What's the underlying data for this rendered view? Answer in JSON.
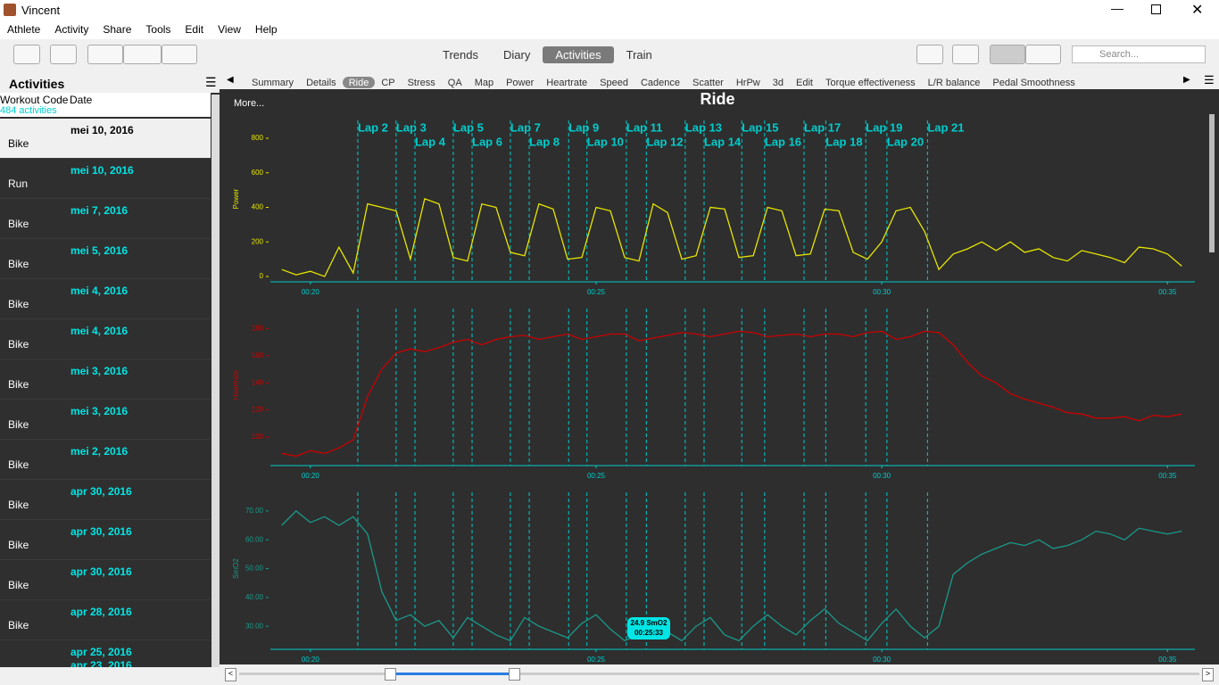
{
  "window": {
    "title": "Vincent"
  },
  "menu": [
    "Athlete",
    "Activity",
    "Share",
    "Tools",
    "Edit",
    "View",
    "Help"
  ],
  "views": [
    "Trends",
    "Diary",
    "Activities",
    "Train"
  ],
  "search": "Search...",
  "sidebar": {
    "title": "Activities",
    "columns": [
      "Workout Code",
      "Date"
    ],
    "count": "484 activities",
    "rows": [
      {
        "code": "Bike",
        "date": "mei 10, 2016"
      },
      {
        "code": "Run",
        "date": "mei 10, 2016"
      },
      {
        "code": "Bike",
        "date": "mei 7, 2016"
      },
      {
        "code": "Bike",
        "date": "mei 5, 2016"
      },
      {
        "code": "Bike",
        "date": "mei 4, 2016"
      },
      {
        "code": "Bike",
        "date": "mei 4, 2016"
      },
      {
        "code": "Bike",
        "date": "mei 3, 2016"
      },
      {
        "code": "Bike",
        "date": "mei 3, 2016"
      },
      {
        "code": "Bike",
        "date": "mei 2, 2016"
      },
      {
        "code": "Bike",
        "date": "apr 30, 2016"
      },
      {
        "code": "Bike",
        "date": "apr 30, 2016"
      },
      {
        "code": "Bike",
        "date": "apr 30, 2016"
      },
      {
        "code": "Bike",
        "date": "apr 28, 2016"
      },
      {
        "date": "apr 25, 2016"
      },
      {
        "date": "apr 23, 2016"
      }
    ]
  },
  "tabs": [
    "Summary",
    "Details",
    "Ride",
    "CP",
    "Stress",
    "QA",
    "Map",
    "Power",
    "Heartrate",
    "Speed",
    "Cadence",
    "Scatter",
    "HrPw",
    "3d",
    "Edit",
    "Torque effectiveness",
    "L/R balance",
    "Pedal Smoothness"
  ],
  "view_title": "Ride",
  "more": "More...",
  "chart_data": [
    {
      "type": "line",
      "y_label": "Power",
      "laps": {
        "x": [
          20.83,
          21.5,
          21.83,
          22.5,
          22.83,
          23.5,
          23.83,
          24.52,
          24.84,
          25.53,
          25.88,
          26.56,
          26.89,
          27.55,
          27.95,
          28.64,
          29.02,
          29.72,
          30.09,
          30.8
        ],
        "labels": [
          "Lap 2",
          "Lap 3",
          "Lap 4",
          "Lap 5",
          "Lap 6",
          "Lap 7",
          "Lap 8",
          "Lap 9",
          "Lap 10",
          "Lap 11",
          "Lap 12",
          "Lap 13",
          "Lap 14",
          "Lap 15",
          "Lap 16",
          "Lap 17",
          "Lap 18",
          "Lap 19",
          "Lap 20",
          "Lap 21"
        ]
      },
      "x": [
        19.5,
        19.75,
        20,
        20.25,
        20.5,
        20.75,
        21,
        21.25,
        21.5,
        21.75,
        22,
        22.25,
        22.5,
        22.75,
        23,
        23.25,
        23.5,
        23.75,
        24,
        24.25,
        24.5,
        24.75,
        25,
        25.25,
        25.5,
        25.75,
        26,
        26.25,
        26.5,
        26.75,
        27,
        27.25,
        27.5,
        27.75,
        28,
        28.25,
        28.5,
        28.75,
        29,
        29.25,
        29.5,
        29.75,
        30,
        30.25,
        30.5,
        30.75,
        31,
        31.25,
        31.5,
        31.75,
        32,
        32.25,
        32.5,
        32.75,
        33,
        33.25,
        33.5,
        33.75,
        34,
        34.25,
        34.5,
        34.75,
        35,
        35.25
      ],
      "series": [
        {
          "name": "Power",
          "color": "#e6e600",
          "values": [
            40,
            10,
            30,
            0,
            170,
            20,
            420,
            400,
            380,
            100,
            450,
            420,
            110,
            90,
            420,
            400,
            140,
            120,
            420,
            390,
            100,
            110,
            400,
            380,
            110,
            90,
            420,
            370,
            100,
            120,
            400,
            390,
            110,
            120,
            400,
            380,
            120,
            130,
            390,
            380,
            140,
            100,
            200,
            380,
            400,
            260,
            40,
            130,
            160,
            200,
            150,
            200,
            140,
            160,
            110,
            90,
            150,
            130,
            110,
            80,
            170,
            160,
            130,
            60
          ]
        }
      ],
      "xlim": [
        19.3,
        35.48
      ],
      "xticks": [
        {
          "value": 20,
          "label": "00:20"
        },
        {
          "value": 25,
          "label": "00:25"
        },
        {
          "value": 30,
          "label": "00:30"
        },
        {
          "value": 35,
          "label": "00:35"
        }
      ],
      "ylim": [
        -31,
        929
      ],
      "yticks": [
        0,
        200,
        400,
        600,
        800
      ]
    },
    {
      "type": "line",
      "y_label": "Heartrate",
      "x": [
        19.5,
        19.75,
        20,
        20.25,
        20.5,
        20.75,
        21,
        21.25,
        21.5,
        21.75,
        22,
        22.25,
        22.5,
        22.75,
        23,
        23.25,
        23.5,
        23.75,
        24,
        24.25,
        24.5,
        24.75,
        25,
        25.25,
        25.5,
        25.75,
        26,
        26.25,
        26.5,
        26.75,
        27,
        27.25,
        27.5,
        27.75,
        28,
        28.25,
        28.5,
        28.75,
        29,
        29.25,
        29.5,
        29.75,
        30,
        30.25,
        30.5,
        30.75,
        31,
        31.25,
        31.5,
        31.75,
        32,
        32.25,
        32.5,
        32.75,
        33,
        33.25,
        33.5,
        33.75,
        34,
        34.25,
        34.5,
        34.75,
        35,
        35.25
      ],
      "series": [
        {
          "name": "Heartrate",
          "color": "#cc0000",
          "values": [
            88,
            86,
            90,
            88,
            92,
            98,
            130,
            150,
            162,
            165,
            163,
            166,
            170,
            172,
            168,
            172,
            174,
            175,
            172,
            174,
            176,
            172,
            174,
            176,
            176,
            171,
            173,
            175,
            177,
            176,
            174,
            176,
            178,
            177,
            174,
            175,
            176,
            174,
            176,
            176,
            174,
            177,
            178,
            172,
            174,
            178,
            177,
            168,
            155,
            145,
            140,
            132,
            128,
            125,
            122,
            118,
            117,
            114,
            114,
            115,
            112,
            116,
            115,
            117
          ]
        }
      ],
      "xlim": [
        19.3,
        35.48
      ],
      "xticks": [
        {
          "value": 20,
          "label": "00:20"
        },
        {
          "value": 25,
          "label": "00:25"
        },
        {
          "value": 30,
          "label": "00:30"
        },
        {
          "value": 35,
          "label": "00:35"
        }
      ],
      "ylim": [
        79,
        198
      ],
      "yticks": [
        100,
        120,
        140,
        160,
        180
      ]
    },
    {
      "type": "line",
      "y_label": "SmO2",
      "x": [
        19.5,
        19.75,
        20,
        20.25,
        20.5,
        20.75,
        21,
        21.25,
        21.5,
        21.75,
        22,
        22.25,
        22.5,
        22.75,
        23,
        23.25,
        23.5,
        23.75,
        24,
        24.25,
        24.5,
        24.75,
        25,
        25.25,
        25.5,
        25.75,
        26,
        26.25,
        26.5,
        26.75,
        27,
        27.25,
        27.5,
        27.75,
        28,
        28.25,
        28.5,
        28.75,
        29,
        29.25,
        29.5,
        29.75,
        30,
        30.25,
        30.5,
        30.75,
        31,
        31.25,
        31.5,
        31.75,
        32,
        32.25,
        32.5,
        32.75,
        33,
        33.25,
        33.5,
        33.75,
        34,
        34.25,
        34.5,
        34.75,
        35,
        35.25
      ],
      "series": [
        {
          "name": "SmO2",
          "color": "#1a9a8a",
          "values": [
            65,
            70,
            66,
            68,
            65,
            68,
            62,
            42,
            32,
            34,
            30,
            32,
            26,
            33,
            30,
            27,
            25,
            33,
            30,
            28,
            26,
            31,
            34,
            29,
            25,
            27,
            30,
            28,
            25,
            30,
            33,
            27,
            25,
            30,
            34,
            30,
            27,
            32,
            36,
            31,
            28,
            25,
            31,
            36,
            30,
            26,
            30,
            48,
            52,
            55,
            57,
            59,
            58,
            60,
            57,
            58,
            60,
            63,
            62,
            60,
            64,
            63,
            62,
            63
          ]
        }
      ],
      "xlim": [
        19.3,
        35.48
      ],
      "xticks": [
        {
          "value": 20,
          "label": "00:20"
        },
        {
          "value": 25,
          "label": "00:25"
        },
        {
          "value": 30,
          "label": "00:30"
        },
        {
          "value": 35,
          "label": "00:35"
        }
      ],
      "ylim": [
        22,
        78
      ],
      "yticks": [
        {
          "value": 30,
          "label": "30.00"
        },
        {
          "value": 40,
          "label": "40.00"
        },
        {
          "value": 50,
          "label": "50.00"
        },
        {
          "value": 60,
          "label": "60.00"
        },
        {
          "value": 70,
          "label": "70.00"
        }
      ],
      "tooltip": [
        "24.9 SmO2",
        "00:25:33"
      ]
    }
  ]
}
